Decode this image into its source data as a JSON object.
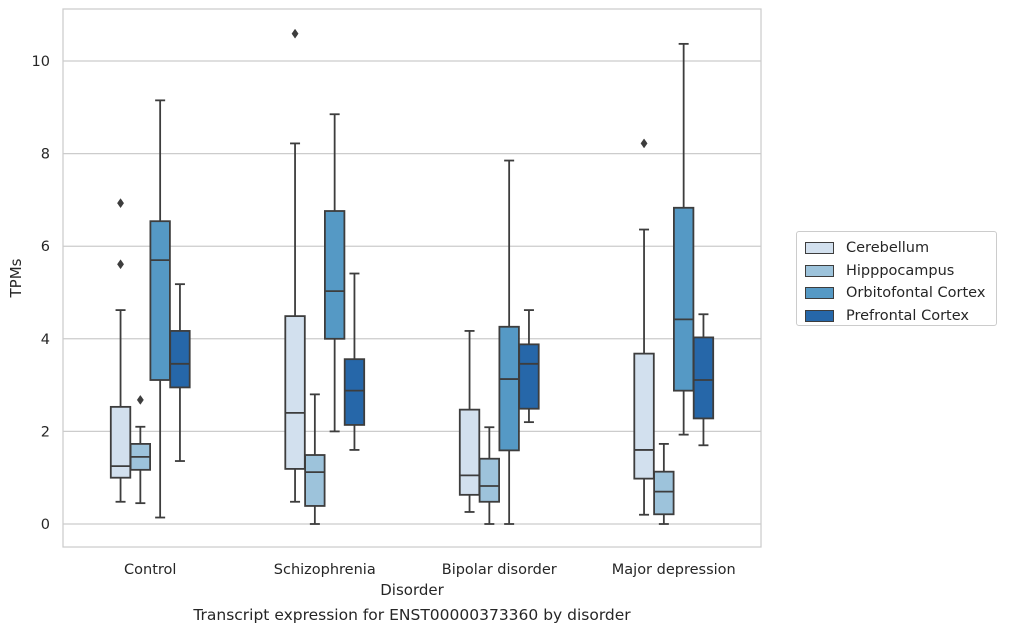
{
  "caption": "Transcript expression for ENST00000373360 by disorder",
  "chart_data": {
    "type": "box",
    "xlabel": "Disorder",
    "ylabel": "TPMs",
    "ylim": [
      -0.5,
      11.1
    ],
    "yticks": [
      0,
      2,
      4,
      6,
      8,
      10
    ],
    "grid": "horizontal",
    "legend_position": "right",
    "categories": [
      "Control",
      "Schizophrenia",
      "Bipolar disorder",
      "Major depression"
    ],
    "series": [
      {
        "name": "Cerebellum",
        "color": "#d2e0ee",
        "boxes": [
          {
            "whisker_low": 0.48,
            "q1": 1.0,
            "median": 1.25,
            "q3": 2.53,
            "whisker_high": 4.62,
            "outliers": [
              5.61,
              6.93
            ]
          },
          {
            "whisker_low": 0.48,
            "q1": 1.19,
            "median": 2.4,
            "q3": 4.49,
            "whisker_high": 8.22,
            "outliers": [
              10.59
            ]
          },
          {
            "whisker_low": 0.26,
            "q1": 0.63,
            "median": 1.05,
            "q3": 2.47,
            "whisker_high": 4.17,
            "outliers": []
          },
          {
            "whisker_low": 0.2,
            "q1": 0.98,
            "median": 1.6,
            "q3": 3.68,
            "whisker_high": 6.36,
            "outliers": [
              8.22
            ]
          }
        ]
      },
      {
        "name": "Hipppocampus",
        "color": "#9dc3db",
        "boxes": [
          {
            "whisker_low": 0.45,
            "q1": 1.17,
            "median": 1.45,
            "q3": 1.73,
            "whisker_high": 2.1,
            "outliers": [
              2.68
            ]
          },
          {
            "whisker_low": 0.0,
            "q1": 0.39,
            "median": 1.12,
            "q3": 1.49,
            "whisker_high": 2.8,
            "outliers": []
          },
          {
            "whisker_low": 0.0,
            "q1": 0.48,
            "median": 0.82,
            "q3": 1.41,
            "whisker_high": 2.09,
            "outliers": []
          },
          {
            "whisker_low": 0.0,
            "q1": 0.21,
            "median": 0.7,
            "q3": 1.13,
            "whisker_high": 1.73,
            "outliers": []
          }
        ]
      },
      {
        "name": "Orbitofontal Cortex",
        "color": "#5599c5",
        "boxes": [
          {
            "whisker_low": 0.14,
            "q1": 3.11,
            "median": 5.7,
            "q3": 6.54,
            "whisker_high": 9.15,
            "outliers": []
          },
          {
            "whisker_low": 2.0,
            "q1": 4.0,
            "median": 5.03,
            "q3": 6.76,
            "whisker_high": 8.85,
            "outliers": []
          },
          {
            "whisker_low": 0.0,
            "q1": 1.59,
            "median": 3.13,
            "q3": 4.26,
            "whisker_high": 7.85,
            "outliers": []
          },
          {
            "whisker_low": 1.93,
            "q1": 2.88,
            "median": 4.42,
            "q3": 6.83,
            "whisker_high": 10.37,
            "outliers": []
          }
        ]
      },
      {
        "name": "Prefrontal Cortex",
        "color": "#2667a9",
        "boxes": [
          {
            "whisker_low": 1.36,
            "q1": 2.95,
            "median": 3.46,
            "q3": 4.17,
            "whisker_high": 5.18,
            "outliers": []
          },
          {
            "whisker_low": 1.6,
            "q1": 2.14,
            "median": 2.88,
            "q3": 3.56,
            "whisker_high": 5.41,
            "outliers": []
          },
          {
            "whisker_low": 2.2,
            "q1": 2.49,
            "median": 3.46,
            "q3": 3.88,
            "whisker_high": 4.62,
            "outliers": []
          },
          {
            "whisker_low": 1.7,
            "q1": 2.28,
            "median": 3.11,
            "q3": 4.03,
            "whisker_high": 4.53,
            "outliers": []
          }
        ]
      }
    ]
  }
}
